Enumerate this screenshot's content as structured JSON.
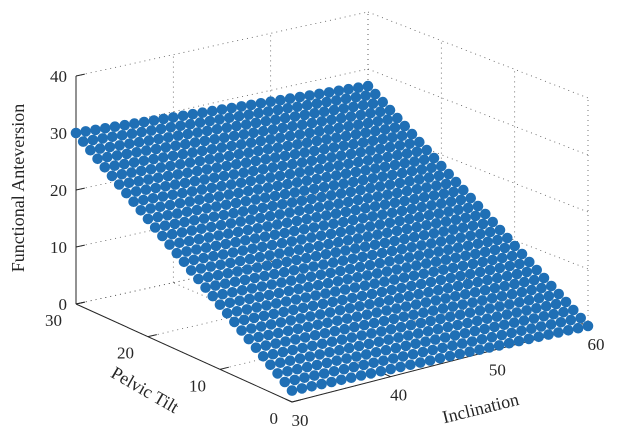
{
  "chart_data": {
    "type": "scatter",
    "projection": "3d",
    "title": "",
    "xlabel": "Inclination",
    "ylabel": "Pelvic Tilt",
    "zlabel": "Functional Anteversion",
    "xlim": [
      30,
      60
    ],
    "ylim": [
      0,
      30
    ],
    "zlim": [
      0,
      40
    ],
    "x_ticks": [
      "30",
      "40",
      "50",
      "60"
    ],
    "y_ticks": [
      "0",
      "10",
      "20",
      "30"
    ],
    "z_ticks": [
      "0",
      "10",
      "20",
      "30",
      "40"
    ],
    "grid": true,
    "box": false,
    "marker_color": "#1f6fb5",
    "surface": {
      "x_range": [
        30,
        60
      ],
      "y_range": [
        0,
        30
      ],
      "x_step": 1,
      "y_step": 1,
      "corners": [
        {
          "inclination": 30,
          "pelvic_tilt": 30,
          "functional_anteversion": 30
        },
        {
          "inclination": 60,
          "pelvic_tilt": 30,
          "functional_anteversion": 27
        },
        {
          "inclination": 30,
          "pelvic_tilt": 0,
          "functional_anteversion": 2
        },
        {
          "inclination": 60,
          "pelvic_tilt": 0,
          "functional_anteversion": 0
        }
      ]
    }
  }
}
